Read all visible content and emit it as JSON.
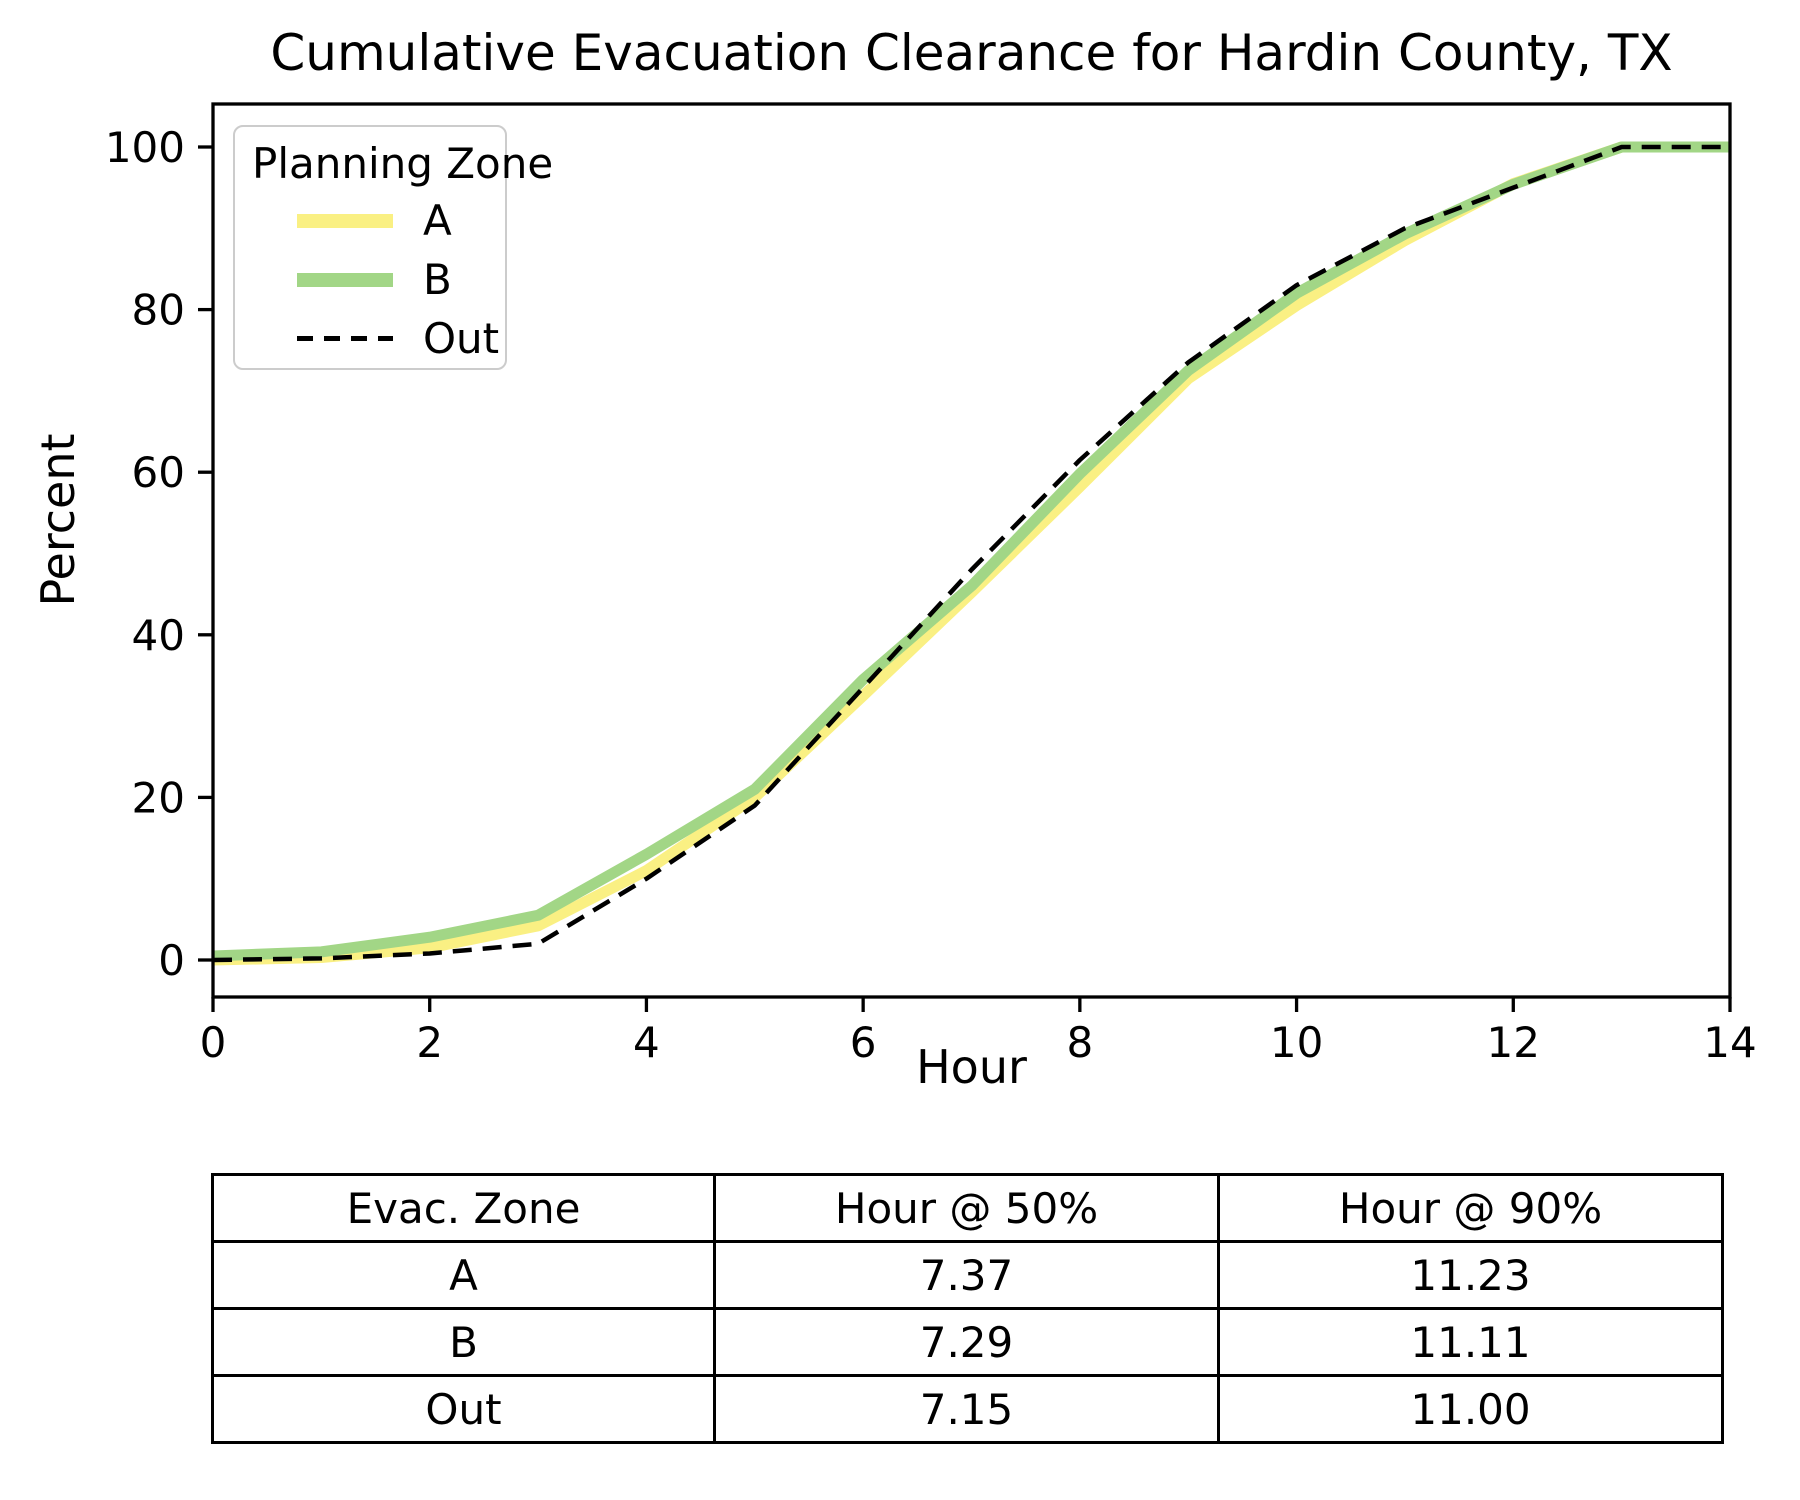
{
  "chart_data": {
    "type": "line",
    "title": "Cumulative Evacuation Clearance for Hardin County, TX",
    "xlabel": "Hour",
    "ylabel": "Percent",
    "xlim": [
      0,
      14
    ],
    "ylim": [
      0,
      100
    ],
    "xticks": [
      0,
      2,
      4,
      6,
      8,
      10,
      12,
      14
    ],
    "yticks": [
      0,
      20,
      40,
      60,
      80,
      100
    ],
    "grid": false,
    "legend": {
      "title": "Planning Zone",
      "position": "upper left"
    },
    "x": [
      0,
      1,
      2,
      3,
      4,
      5,
      6,
      7,
      8,
      9,
      10,
      11,
      12,
      13,
      14
    ],
    "series": [
      {
        "name": "A",
        "color": "#FAF083",
        "style": "solid",
        "width": 11,
        "values": [
          0,
          0.3,
          1.5,
          4.2,
          11,
          20,
          32.5,
          45.2,
          58.2,
          71.5,
          80.5,
          88.5,
          95.5,
          100,
          100
        ]
      },
      {
        "name": "B",
        "color": "#A2D686",
        "style": "solid",
        "width": 11,
        "values": [
          0.5,
          1,
          2.8,
          5.5,
          13,
          21,
          34.5,
          46,
          59.8,
          72.5,
          82,
          89.3,
          95.4,
          100,
          100
        ]
      },
      {
        "name": "Out",
        "color": "#000000",
        "style": "dashed",
        "width": 4.5,
        "values": [
          0,
          0.2,
          0.8,
          2,
          10,
          19,
          33.5,
          48,
          61.5,
          73.5,
          83,
          90,
          95,
          100,
          100
        ]
      }
    ]
  },
  "table": {
    "headers": [
      "Evac. Zone",
      "Hour @ 50%",
      "Hour @ 90%"
    ],
    "rows": [
      [
        "A",
        "7.37",
        "11.23"
      ],
      [
        "B",
        "7.29",
        "11.11"
      ],
      [
        "Out",
        "7.15",
        "11.00"
      ]
    ]
  }
}
